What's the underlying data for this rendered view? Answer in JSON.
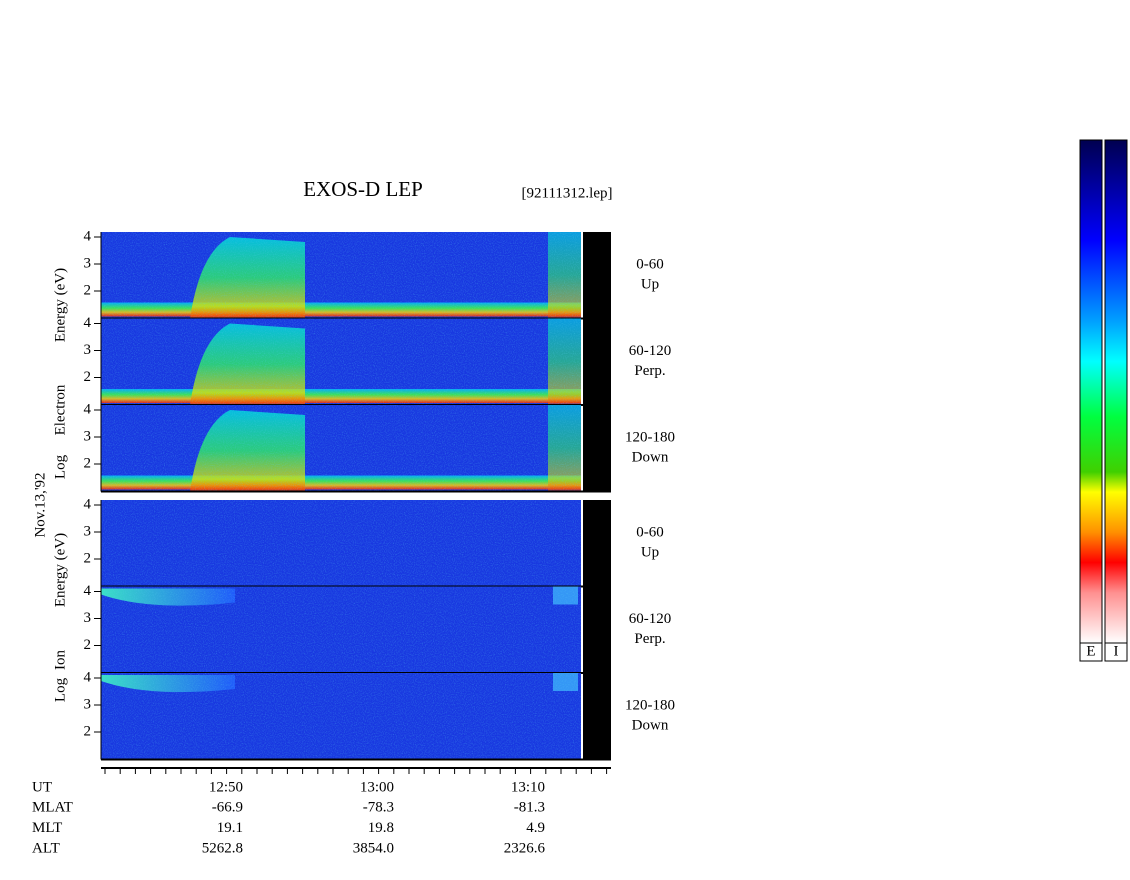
{
  "header": {
    "title": "EXOS-D LEP",
    "file": "[92111312.lep]"
  },
  "date": "Nov.13,'92",
  "groups": [
    {
      "axis_label": [
        "Log",
        "Electron",
        "Energy (eV)"
      ],
      "panels": [
        {
          "label": [
            "0-60",
            "Up"
          ],
          "ticks": [
            "4",
            "3",
            "2"
          ]
        },
        {
          "label": [
            "60-120",
            "Perp."
          ],
          "ticks": [
            "4",
            "3",
            "2"
          ]
        },
        {
          "label": [
            "120-180",
            "Down"
          ],
          "ticks": [
            "4",
            "3",
            "2"
          ]
        }
      ]
    },
    {
      "axis_label": [
        "Log",
        "Ion",
        "Energy (eV)"
      ],
      "panels": [
        {
          "label": [
            "0-60",
            "Up"
          ],
          "ticks": [
            "4",
            "3",
            "2"
          ]
        },
        {
          "label": [
            "60-120",
            "Perp."
          ],
          "ticks": [
            "4",
            "3",
            "2"
          ]
        },
        {
          "label": [
            "120-180",
            "Down"
          ],
          "ticks": [
            "4",
            "3",
            "2"
          ]
        }
      ]
    }
  ],
  "footer": {
    "rows": [
      {
        "name": "UT",
        "values": [
          "12:50",
          "13:00",
          "13:10"
        ]
      },
      {
        "name": "MLAT",
        "values": [
          "-66.9",
          "-78.3",
          "-81.3"
        ]
      },
      {
        "name": "MLT",
        "values": [
          "19.1",
          "19.8",
          "4.9"
        ]
      },
      {
        "name": "ALT",
        "values": [
          "5262.8",
          "3854.0",
          "2326.6"
        ]
      }
    ]
  },
  "colorbars": [
    "E",
    "I"
  ]
}
